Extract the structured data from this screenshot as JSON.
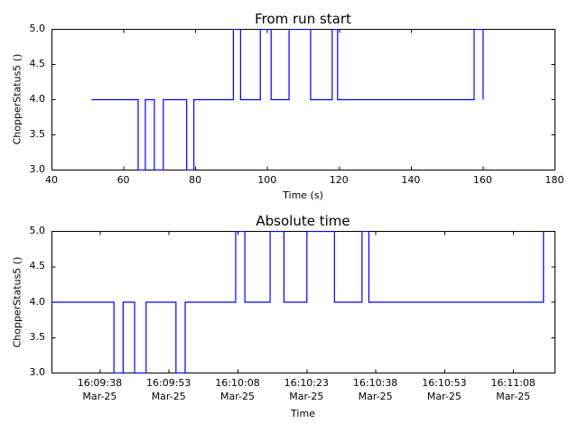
{
  "figure": {
    "background_color": "#ffffff",
    "axis_color": "#000000",
    "line_color": "#0000ff"
  },
  "chart_data": [
    {
      "type": "line",
      "line_style": "step-post",
      "title": "From run start",
      "xlabel": "Time (s)",
      "ylabel": "ChopperStatus5 ()",
      "series_name": "ChopperStatus5",
      "line_color": "#0000ff",
      "grid": false,
      "legend": false,
      "xlim": [
        40,
        180
      ],
      "ylim": [
        3.0,
        5.0
      ],
      "xticks": [
        40,
        60,
        80,
        100,
        120,
        140,
        160,
        180
      ],
      "xtick_labels": [
        "40",
        "60",
        "80",
        "100",
        "120",
        "140",
        "160",
        "180"
      ],
      "yticks": [
        3.0,
        3.5,
        4.0,
        4.5,
        5.0
      ],
      "ytick_labels": [
        "3.0",
        "3.5",
        "4.0",
        "4.5",
        "5.0"
      ],
      "steps": [
        [
          51,
          4
        ],
        [
          64,
          3
        ],
        [
          66,
          4
        ],
        [
          68.5,
          3
        ],
        [
          71,
          4
        ],
        [
          77.5,
          3
        ],
        [
          79.5,
          4
        ],
        [
          90.5,
          5
        ],
        [
          92.5,
          4
        ],
        [
          98,
          5
        ],
        [
          101,
          4
        ],
        [
          106,
          5
        ],
        [
          112,
          4
        ],
        [
          118,
          5
        ],
        [
          119.5,
          4
        ],
        [
          157.5,
          5
        ],
        [
          160,
          4
        ]
      ]
    },
    {
      "type": "line",
      "line_style": "step-post",
      "title": "Absolute time",
      "xlabel": "Time",
      "ylabel": "ChopperStatus5 ()",
      "series_name": "ChopperStatus5",
      "line_color": "#0000ff",
      "grid": false,
      "legend": false,
      "x_unit": "seconds relative to 16:09:38 Mar-25",
      "xlim": [
        -10.5,
        99.0
      ],
      "ylim": [
        3.0,
        5.0
      ],
      "xticks": [
        0,
        15,
        30,
        45,
        60,
        75,
        90
      ],
      "xtick_labels": [
        [
          "16:09:38",
          "Mar-25"
        ],
        [
          "16:09:53",
          "Mar-25"
        ],
        [
          "16:10:08",
          "Mar-25"
        ],
        [
          "16:10:23",
          "Mar-25"
        ],
        [
          "16:10:38",
          "Mar-25"
        ],
        [
          "16:10:53",
          "Mar-25"
        ],
        [
          "16:11:08",
          "Mar-25"
        ]
      ],
      "yticks": [
        3.0,
        3.5,
        4.0,
        4.5,
        5.0
      ],
      "ytick_labels": [
        "3.0",
        "3.5",
        "4.0",
        "4.5",
        "5.0"
      ],
      "steps": [
        [
          -10.5,
          4
        ],
        [
          3,
          3
        ],
        [
          5,
          4
        ],
        [
          7.5,
          3
        ],
        [
          10,
          4
        ],
        [
          16.5,
          3
        ],
        [
          18.5,
          4
        ],
        [
          29.5,
          5
        ],
        [
          31.5,
          4
        ],
        [
          37,
          5
        ],
        [
          40,
          4
        ],
        [
          45,
          5
        ],
        [
          51,
          4
        ],
        [
          57,
          5
        ],
        [
          58.5,
          4
        ],
        [
          96.5,
          5
        ]
      ]
    }
  ]
}
